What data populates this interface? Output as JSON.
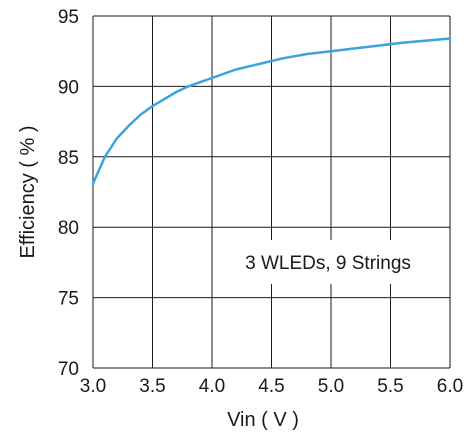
{
  "chart_data": {
    "type": "line",
    "title": "",
    "xlabel": "Vin ( V )",
    "ylabel": "Efficiency ( % )",
    "xlim": [
      3.0,
      6.0
    ],
    "ylim": [
      70,
      95
    ],
    "xticks": [
      "3.0",
      "3.5",
      "4.0",
      "4.5",
      "5.0",
      "5.5",
      "6.0"
    ],
    "yticks": [
      "70",
      "75",
      "80",
      "85",
      "90",
      "95"
    ],
    "grid": true,
    "annotation": "3 WLEDs,  9 Strings",
    "line_color": "#3ba4dc",
    "series": [
      {
        "x": [
          3.0,
          3.1,
          3.2,
          3.3,
          3.4,
          3.5,
          3.6,
          3.7,
          3.8,
          3.9,
          4.0,
          4.2,
          4.4,
          4.6,
          4.8,
          5.0,
          5.2,
          5.4,
          5.6,
          5.8,
          6.0
        ],
        "values": [
          83.1,
          85.0,
          86.3,
          87.2,
          88.0,
          88.6,
          89.1,
          89.6,
          90.0,
          90.3,
          90.6,
          91.2,
          91.6,
          92.0,
          92.3,
          92.5,
          92.7,
          92.9,
          93.1,
          93.25,
          93.4
        ]
      }
    ]
  }
}
